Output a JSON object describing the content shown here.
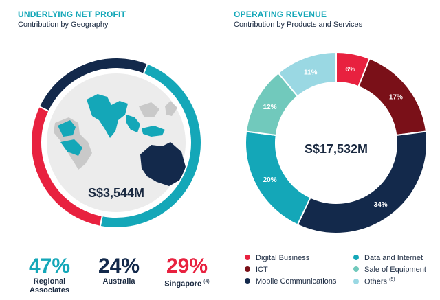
{
  "left_panel": {
    "title": "UNDERLYING NET PROFIT",
    "subtitle": "Contribution by Geography"
  },
  "right_panel": {
    "title": "OPERATING REVENUE",
    "subtitle": "Contribution by Products and Services"
  },
  "chart_data": [
    {
      "type": "pie",
      "title": "UNDERLYING NET PROFIT",
      "subtitle": "Contribution by Geography",
      "center_label": "S$3,544M",
      "slices": [
        {
          "name": "Regional Associates",
          "value": 47,
          "value_label": "47%",
          "color": "#14a7b8"
        },
        {
          "name": "Australia",
          "value": 24,
          "value_label": "24%",
          "color": "#13294b"
        },
        {
          "name": "Singapore",
          "value": 29,
          "value_label": "29%",
          "note": "(4)",
          "color": "#e8213f"
        }
      ]
    },
    {
      "type": "pie",
      "title": "OPERATING REVENUE",
      "subtitle": "Contribution by Products and Services",
      "center_label": "S$17,532M",
      "slices": [
        {
          "name": "Digital Business",
          "value": 6,
          "value_label": "6%",
          "color": "#e8213f"
        },
        {
          "name": "ICT",
          "value": 17,
          "value_label": "17%",
          "color": "#7a1018"
        },
        {
          "name": "Mobile Communications",
          "value": 34,
          "value_label": "34%",
          "color": "#13294b"
        },
        {
          "name": "Data and Internet",
          "value": 20,
          "value_label": "20%",
          "color": "#14a7b8"
        },
        {
          "name": "Sale of Equipment",
          "value": 12,
          "value_label": "12%",
          "color": "#71c9bc"
        },
        {
          "name": "Others",
          "value": 11,
          "value_label": "11%",
          "note": "(5)",
          "color": "#9ad8e3"
        }
      ]
    }
  ],
  "legend": [
    {
      "name": "Digital Business",
      "color": "#e8213f"
    },
    {
      "name": "Data and Internet",
      "color": "#14a7b8"
    },
    {
      "name": "ICT",
      "color": "#7a1018"
    },
    {
      "name": "Sale of Equipment",
      "color": "#71c9bc"
    },
    {
      "name": "Mobile Communications",
      "color": "#13294b"
    },
    {
      "name": "Others",
      "note": "(5)",
      "color": "#9ad8e3"
    }
  ],
  "map_icon": "asia-pacific-map-icon"
}
